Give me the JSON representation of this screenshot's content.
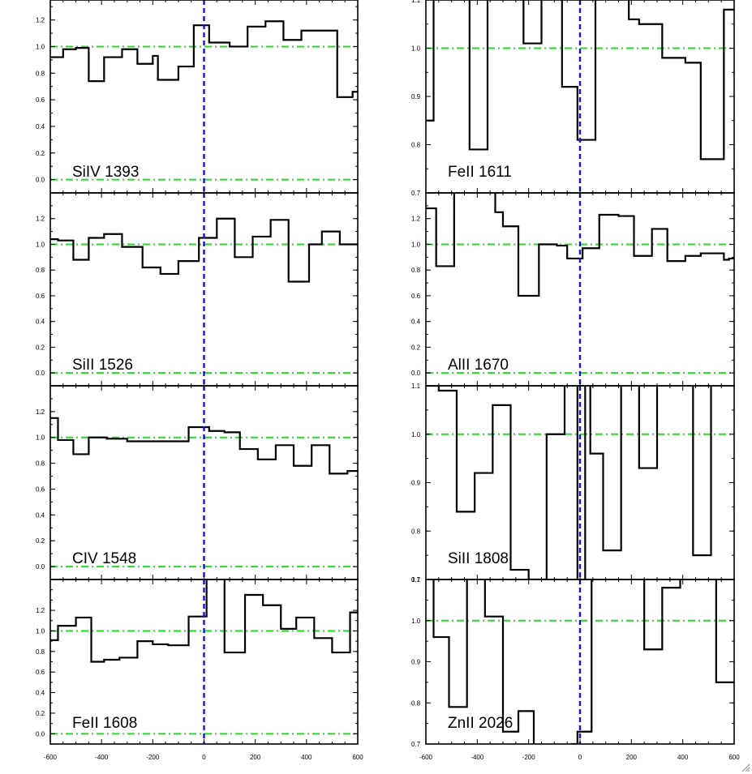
{
  "chart_data": {
    "type": "line",
    "layout": "4 rows x 2 columns",
    "xlabel": "",
    "ylabel": "",
    "xlim": [
      -600,
      600
    ],
    "x_ticks": [
      "-600",
      "-400",
      "-200",
      "0",
      "200",
      "400",
      "600"
    ],
    "reference_lines": {
      "continuum": 1.0,
      "zero": 0.0,
      "velocity": 0,
      "continuum_color": "#22dd22",
      "velocity_color": "#1515d0"
    },
    "panels": [
      {
        "label": "SiIV 1393",
        "ylim": [
          -0.1,
          1.35
        ],
        "y_ticks": [
          "0.0",
          "0.2",
          "0.4",
          "0.6",
          "0.8",
          "1.0",
          "1.2"
        ],
        "steps": [
          [
            -600,
            0.92
          ],
          [
            -550,
            0.98
          ],
          [
            -500,
            0.99
          ],
          [
            -450,
            0.74
          ],
          [
            -390,
            0.92
          ],
          [
            -320,
            0.98
          ],
          [
            -260,
            0.87
          ],
          [
            -200,
            0.93
          ],
          [
            -180,
            0.75
          ],
          [
            -100,
            0.85
          ],
          [
            -40,
            1.16
          ],
          [
            20,
            1.03
          ],
          [
            100,
            1.0
          ],
          [
            170,
            1.15
          ],
          [
            240,
            1.19
          ],
          [
            310,
            1.05
          ],
          [
            380,
            1.12
          ],
          [
            520,
            0.62
          ],
          [
            580,
            0.66
          ]
        ]
      },
      {
        "label": "FeII 1611",
        "ylim": [
          0.7,
          1.1
        ],
        "y_ticks": [
          "0.7",
          "0.8",
          "0.9",
          "1.0",
          "1.1"
        ],
        "steps": [
          [
            -600,
            0.85
          ],
          [
            -570,
            1.15
          ],
          [
            -540,
            1.15
          ],
          [
            -430,
            0.79
          ],
          [
            -360,
            1.15
          ],
          [
            -220,
            1.01
          ],
          [
            -150,
            1.15
          ],
          [
            -70,
            0.92
          ],
          [
            -10,
            0.81
          ],
          [
            60,
            1.15
          ],
          [
            190,
            1.06
          ],
          [
            230,
            1.05
          ],
          [
            320,
            0.98
          ],
          [
            410,
            0.97
          ],
          [
            470,
            0.77
          ],
          [
            560,
            1.08
          ]
        ]
      },
      {
        "label": "SiII 1526",
        "ylim": [
          -0.1,
          1.4
        ],
        "y_ticks": [
          "0.0",
          "0.2",
          "0.4",
          "0.6",
          "0.8",
          "1.0",
          "1.2"
        ],
        "steps": [
          [
            -600,
            1.04
          ],
          [
            -570,
            1.03
          ],
          [
            -510,
            0.88
          ],
          [
            -450,
            1.05
          ],
          [
            -390,
            1.08
          ],
          [
            -320,
            0.98
          ],
          [
            -240,
            0.82
          ],
          [
            -170,
            0.77
          ],
          [
            -100,
            0.87
          ],
          [
            -20,
            1.05
          ],
          [
            50,
            1.2
          ],
          [
            120,
            0.9
          ],
          [
            190,
            1.06
          ],
          [
            260,
            1.19
          ],
          [
            330,
            0.71
          ],
          [
            410,
            1.0
          ],
          [
            460,
            1.1
          ],
          [
            530,
            1.0
          ],
          [
            570,
            1.0
          ]
        ]
      },
      {
        "label": "AlII 1670",
        "ylim": [
          -0.1,
          1.4
        ],
        "y_ticks": [
          "0.0",
          "0.2",
          "0.4",
          "0.6",
          "0.8",
          "1.0",
          "1.2"
        ],
        "steps": [
          [
            -600,
            1.28
          ],
          [
            -560,
            0.83
          ],
          [
            -490,
            1.45
          ],
          [
            -330,
            1.25
          ],
          [
            -300,
            1.14
          ],
          [
            -240,
            0.6
          ],
          [
            -160,
            1.0
          ],
          [
            -90,
            0.99
          ],
          [
            -50,
            0.89
          ],
          [
            10,
            0.97
          ],
          [
            75,
            1.23
          ],
          [
            150,
            1.22
          ],
          [
            210,
            0.91
          ],
          [
            280,
            1.12
          ],
          [
            340,
            0.87
          ],
          [
            410,
            0.91
          ],
          [
            470,
            0.93
          ],
          [
            560,
            0.88
          ],
          [
            580,
            0.89
          ]
        ]
      },
      {
        "label": "CIV 1548",
        "ylim": [
          -0.1,
          1.4
        ],
        "y_ticks": [
          "0.0",
          "0.2",
          "0.4",
          "0.6",
          "0.8",
          "1.0",
          "1.2"
        ],
        "steps": [
          [
            -600,
            1.15
          ],
          [
            -570,
            0.98
          ],
          [
            -510,
            0.87
          ],
          [
            -450,
            1.0
          ],
          [
            -380,
            0.99
          ],
          [
            -300,
            0.97
          ],
          [
            -240,
            0.97
          ],
          [
            -60,
            1.08
          ],
          [
            20,
            1.05
          ],
          [
            80,
            1.04
          ],
          [
            140,
            0.91
          ],
          [
            210,
            0.83
          ],
          [
            280,
            0.94
          ],
          [
            350,
            0.78
          ],
          [
            420,
            0.94
          ],
          [
            490,
            0.72
          ],
          [
            560,
            0.74
          ]
        ]
      },
      {
        "label": "SiII 1808",
        "ylim": [
          0.7,
          1.1
        ],
        "y_ticks": [
          "0.7",
          "0.8",
          "0.9",
          "1.0",
          "1.1"
        ],
        "steps": [
          [
            -600,
            1.1
          ],
          [
            -550,
            1.09
          ],
          [
            -480,
            0.84
          ],
          [
            -410,
            0.92
          ],
          [
            -340,
            1.06
          ],
          [
            -270,
            0.72
          ],
          [
            -200,
            0.7
          ],
          [
            -130,
            1.0
          ],
          [
            -60,
            1.15
          ],
          [
            -10,
            0.68
          ],
          [
            20,
            1.15
          ],
          [
            40,
            0.96
          ],
          [
            90,
            0.76
          ],
          [
            160,
            1.15
          ],
          [
            230,
            0.93
          ],
          [
            300,
            1.15
          ],
          [
            440,
            0.75
          ],
          [
            510,
            1.15
          ]
        ]
      },
      {
        "label": "FeII 1608",
        "ylim": [
          -0.1,
          1.5
        ],
        "y_ticks": [
          "0.0",
          "0.2",
          "0.4",
          "0.6",
          "0.8",
          "1.0",
          "1.2"
        ],
        "steps": [
          [
            -600,
            0.91
          ],
          [
            -570,
            1.05
          ],
          [
            -500,
            1.13
          ],
          [
            -440,
            0.7
          ],
          [
            -390,
            0.72
          ],
          [
            -330,
            0.74
          ],
          [
            -260,
            0.9
          ],
          [
            -200,
            0.87
          ],
          [
            -140,
            0.86
          ],
          [
            -60,
            1.14
          ],
          [
            10,
            1.6
          ],
          [
            80,
            0.79
          ],
          [
            160,
            1.35
          ],
          [
            230,
            1.25
          ],
          [
            300,
            1.02
          ],
          [
            360,
            1.13
          ],
          [
            430,
            0.93
          ],
          [
            500,
            0.79
          ],
          [
            570,
            1.18
          ]
        ]
      },
      {
        "label": "ZnII 2026",
        "ylim": [
          0.7,
          1.1
        ],
        "y_ticks": [
          "0.7",
          "0.8",
          "0.9",
          "1.0",
          "1.1"
        ],
        "steps": [
          [
            -600,
            1.15
          ],
          [
            -570,
            0.96
          ],
          [
            -510,
            0.79
          ],
          [
            -440,
            1.15
          ],
          [
            -370,
            1.01
          ],
          [
            -300,
            0.73
          ],
          [
            -240,
            0.78
          ],
          [
            -180,
            0.68
          ],
          [
            -30,
            0.7
          ],
          [
            -10,
            0.73
          ],
          [
            45,
            1.15
          ],
          [
            250,
            0.93
          ],
          [
            320,
            1.08
          ],
          [
            390,
            1.15
          ],
          [
            530,
            0.85
          ],
          [
            600,
            0.85
          ]
        ]
      }
    ]
  },
  "icons": {
    "corner": "resize-grip-icon"
  }
}
